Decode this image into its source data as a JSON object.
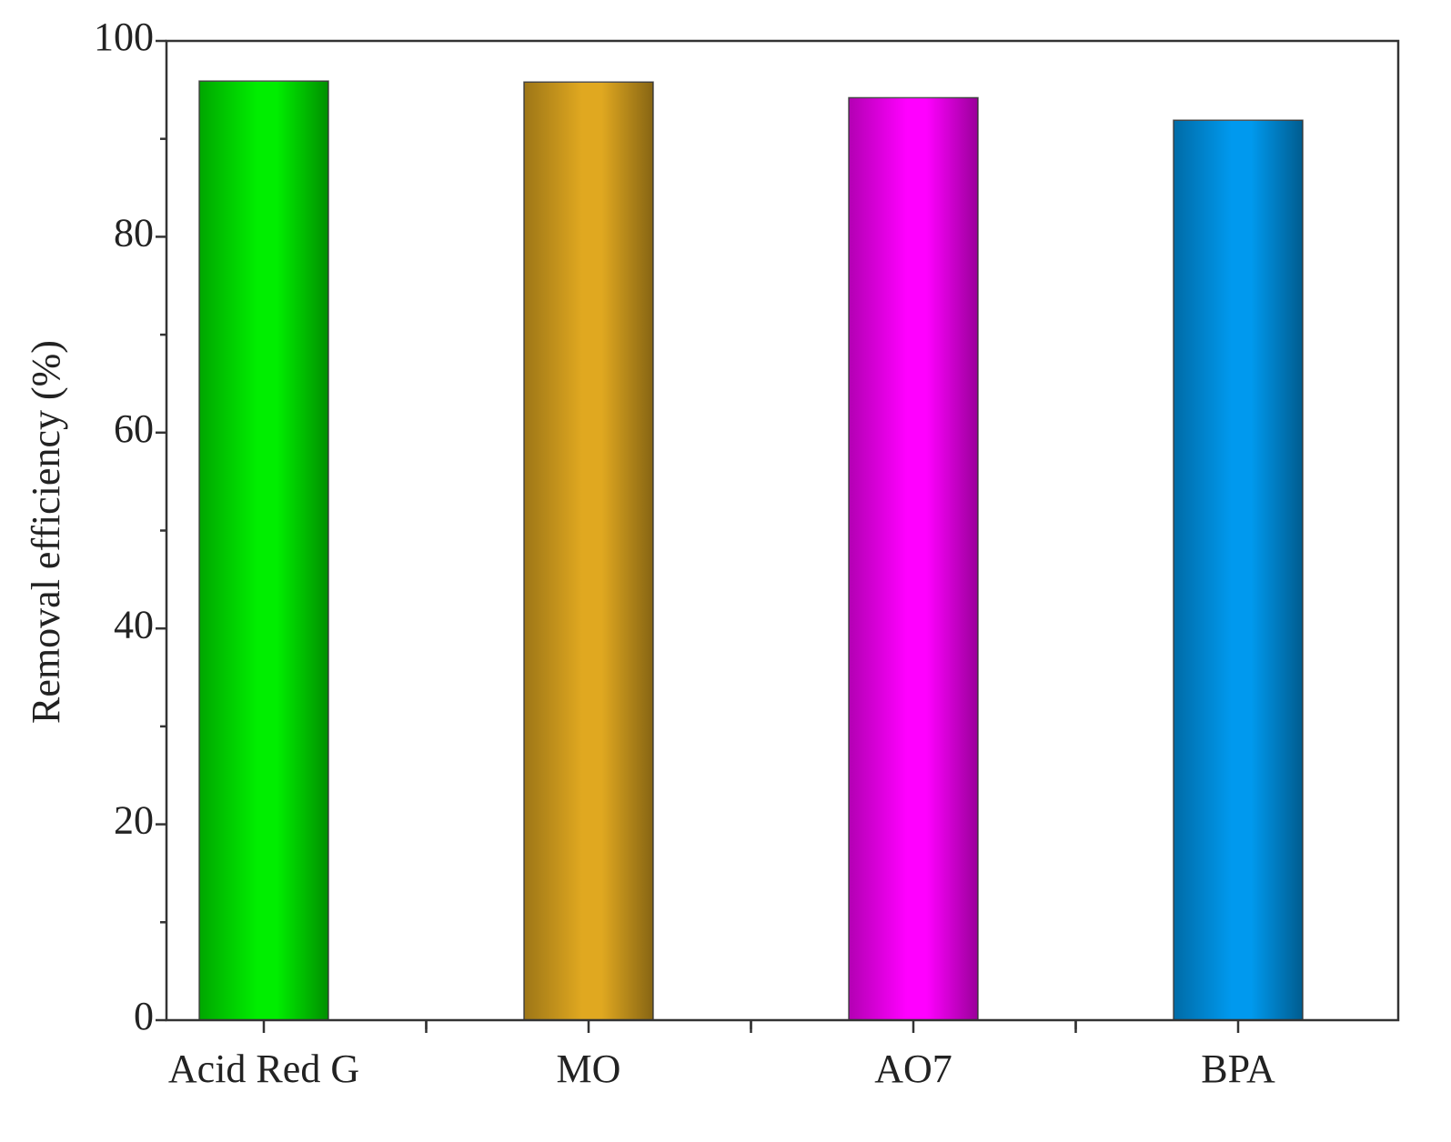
{
  "chart_data": {
    "type": "bar",
    "y_label": "Removal efficiency (%)",
    "categories": [
      "Acid Red G",
      "MO",
      "AO7",
      "BPA"
    ],
    "values": [
      95.9,
      95.8,
      94.2,
      91.9
    ],
    "colors": [
      "#00ee00",
      "#e0a820",
      "#ff00ff",
      "#0099ee"
    ],
    "ylim": [
      0,
      100
    ],
    "yticks": [
      0,
      20,
      40,
      60,
      80,
      100
    ],
    "y_minor_ticks": [
      10,
      30,
      50,
      70,
      90
    ]
  }
}
